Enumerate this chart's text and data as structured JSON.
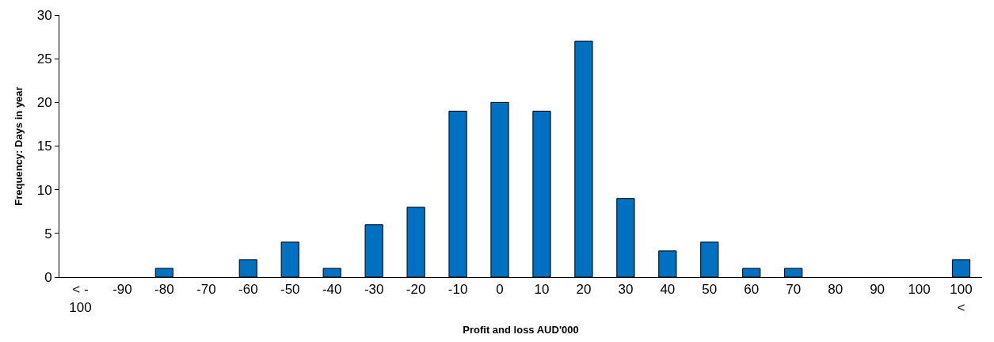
{
  "chart_data": {
    "type": "bar",
    "xlabel": "Profit and loss AUD'000",
    "ylabel": "Frequency: Days in year",
    "categories": [
      "< -\n100",
      "-90",
      "-80",
      "-70",
      "-60",
      "-50",
      "-40",
      "-30",
      "-20",
      "-10",
      "0",
      "10",
      "20",
      "30",
      "40",
      "50",
      "60",
      "70",
      "80",
      "90",
      "100",
      "100\n<"
    ],
    "values": [
      0,
      0,
      1,
      0,
      2,
      4,
      1,
      6,
      8,
      19,
      20,
      19,
      27,
      9,
      3,
      4,
      1,
      1,
      0,
      0,
      0,
      2
    ],
    "color": "#0070c0",
    "ylim": [
      0,
      30
    ],
    "yticks": [
      0,
      5,
      10,
      15,
      20,
      25,
      30
    ],
    "legend": false
  }
}
